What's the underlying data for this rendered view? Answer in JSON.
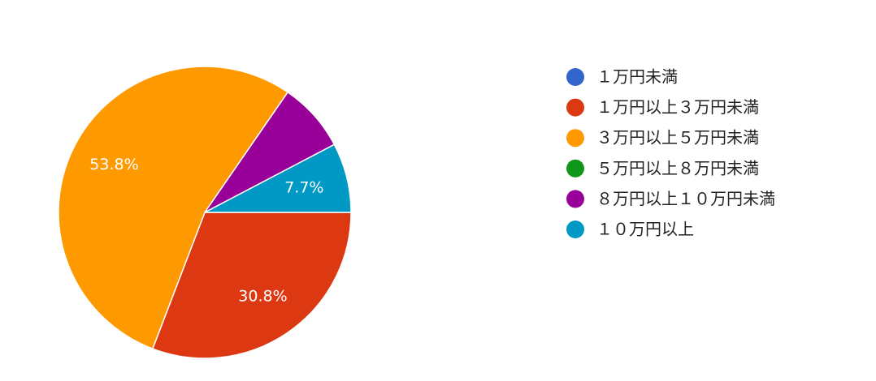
{
  "chart_data": {
    "type": "pie",
    "categories": [
      "１万円未満",
      "１万円以上３万円未満",
      "３万円以上５万円未満",
      "５万円以上８万円未満",
      "８万円以上１０万円未満",
      "１０万円以上"
    ],
    "values": [
      0,
      30.8,
      53.8,
      0,
      7.7,
      7.7
    ],
    "value_labels": [
      null,
      "30.8%",
      "53.8%",
      null,
      null,
      "7.7%"
    ],
    "colors": [
      "#3366cc",
      "#dc3912",
      "#ff9900",
      "#109618",
      "#990099",
      "#0099c6"
    ],
    "legend": "right"
  }
}
